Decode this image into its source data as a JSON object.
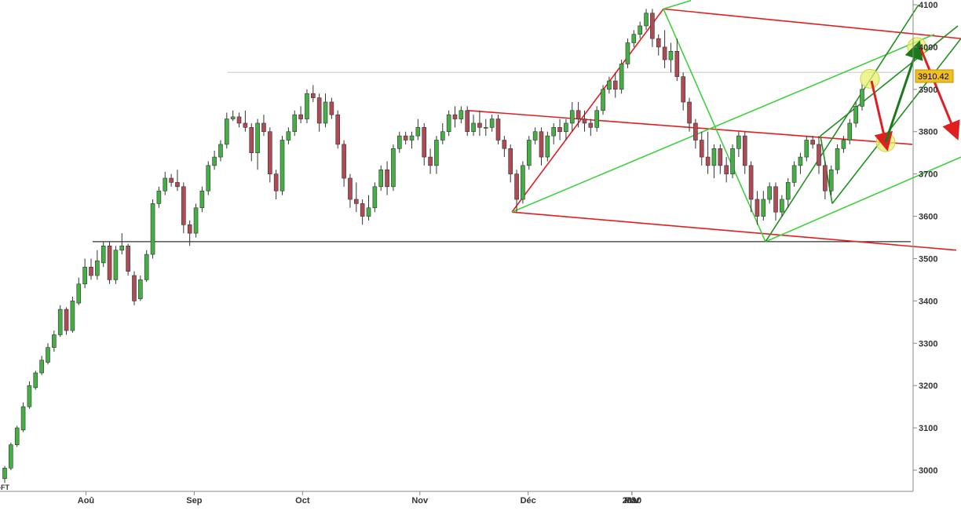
{
  "chart_data": {
    "type": "candlestick",
    "title": "",
    "xlabel": "",
    "ylabel": "",
    "ylim": [
      2950,
      4100
    ],
    "y_ticks": [
      3000,
      3100,
      3200,
      3300,
      3400,
      3500,
      3600,
      3700,
      3800,
      3900,
      4000,
      4100
    ],
    "y_tick_labels": [
      "3000",
      "3100",
      "3200",
      "3300",
      "3400",
      "3500",
      "3600",
      "3700",
      "3800",
      "3900",
      "4000",
      "4100"
    ],
    "x_tick_labels": [
      "Aoû",
      "Sep",
      "Oct",
      "Nov",
      "Déc",
      "2010",
      "Fév",
      "Mar"
    ],
    "last_price_label": "3910.42",
    "corner_label": "-FT",
    "up_color": "#44b044",
    "down_color": "#b04a55",
    "grid": false,
    "candles": [
      [
        2980,
        2970,
        3005,
        3010
      ],
      [
        3005,
        3000,
        3060,
        3065
      ],
      [
        3060,
        3055,
        3100,
        3105
      ],
      [
        3095,
        3090,
        3150,
        3160
      ],
      [
        3150,
        3145,
        3200,
        3210
      ],
      [
        3195,
        3190,
        3230,
        3235
      ],
      [
        3230,
        3225,
        3260,
        3270
      ],
      [
        3255,
        3250,
        3290,
        3300
      ],
      [
        3290,
        3280,
        3320,
        3330
      ],
      [
        3320,
        3315,
        3380,
        3390
      ],
      [
        3380,
        3320,
        3330,
        3385
      ],
      [
        3330,
        3325,
        3400,
        3410
      ],
      [
        3395,
        3390,
        3440,
        3455
      ],
      [
        3440,
        3430,
        3480,
        3500
      ],
      [
        3480,
        3450,
        3460,
        3500
      ],
      [
        3460,
        3450,
        3495,
        3520
      ],
      [
        3490,
        3480,
        3530,
        3540
      ],
      [
        3530,
        3440,
        3450,
        3540
      ],
      [
        3450,
        3440,
        3520,
        3530
      ],
      [
        3520,
        3510,
        3530,
        3560
      ],
      [
        3530,
        3460,
        3470,
        3535
      ],
      [
        3460,
        3390,
        3400,
        3470
      ],
      [
        3405,
        3400,
        3450,
        3460
      ],
      [
        3450,
        3445,
        3510,
        3520
      ],
      [
        3510,
        3500,
        3630,
        3640
      ],
      [
        3630,
        3620,
        3660,
        3670
      ],
      [
        3660,
        3650,
        3690,
        3705
      ],
      [
        3690,
        3670,
        3680,
        3700
      ],
      [
        3680,
        3660,
        3670,
        3710
      ],
      [
        3670,
        3560,
        3580,
        3680
      ],
      [
        3580,
        3530,
        3560,
        3590
      ],
      [
        3560,
        3550,
        3620,
        3630
      ],
      [
        3620,
        3610,
        3660,
        3670
      ],
      [
        3660,
        3650,
        3720,
        3730
      ],
      [
        3720,
        3710,
        3740,
        3755
      ],
      [
        3740,
        3730,
        3770,
        3780
      ],
      [
        3770,
        3760,
        3830,
        3845
      ],
      [
        3830,
        3825,
        3835,
        3850
      ],
      [
        3835,
        3810,
        3820,
        3845
      ],
      [
        3820,
        3800,
        3810,
        3850
      ],
      [
        3810,
        3730,
        3750,
        3820
      ],
      [
        3750,
        3710,
        3820,
        3830
      ],
      [
        3820,
        3790,
        3800,
        3840
      ],
      [
        3800,
        3680,
        3700,
        3810
      ],
      [
        3700,
        3640,
        3660,
        3710
      ],
      [
        3660,
        3650,
        3780,
        3790
      ],
      [
        3780,
        3770,
        3800,
        3810
      ],
      [
        3800,
        3790,
        3840,
        3850
      ],
      [
        3840,
        3820,
        3830,
        3860
      ],
      [
        3830,
        3820,
        3890,
        3900
      ],
      [
        3890,
        3870,
        3880,
        3910
      ],
      [
        3880,
        3800,
        3820,
        3890
      ],
      [
        3820,
        3810,
        3870,
        3890
      ],
      [
        3870,
        3830,
        3840,
        3880
      ],
      [
        3840,
        3760,
        3770,
        3850
      ],
      [
        3770,
        3670,
        3690,
        3780
      ],
      [
        3690,
        3620,
        3640,
        3700
      ],
      [
        3640,
        3610,
        3630,
        3680
      ],
      [
        3630,
        3580,
        3600,
        3640
      ],
      [
        3600,
        3590,
        3620,
        3650
      ],
      [
        3620,
        3610,
        3670,
        3680
      ],
      [
        3670,
        3660,
        3710,
        3720
      ],
      [
        3710,
        3650,
        3670,
        3730
      ],
      [
        3670,
        3660,
        3760,
        3770
      ],
      [
        3760,
        3750,
        3790,
        3800
      ],
      [
        3790,
        3770,
        3780,
        3800
      ],
      [
        3780,
        3760,
        3790,
        3800
      ],
      [
        3790,
        3780,
        3810,
        3830
      ],
      [
        3810,
        3720,
        3740,
        3820
      ],
      [
        3740,
        3700,
        3720,
        3760
      ],
      [
        3720,
        3700,
        3780,
        3790
      ],
      [
        3780,
        3770,
        3800,
        3820
      ],
      [
        3800,
        3790,
        3840,
        3850
      ],
      [
        3840,
        3810,
        3830,
        3860
      ],
      [
        3830,
        3820,
        3850,
        3860
      ],
      [
        3850,
        3790,
        3800,
        3860
      ],
      [
        3800,
        3790,
        3820,
        3840
      ],
      [
        3820,
        3790,
        3810,
        3850
      ],
      [
        3810,
        3790,
        3810,
        3830
      ],
      [
        3810,
        3800,
        3830,
        3840
      ],
      [
        3830,
        3770,
        3780,
        3840
      ],
      [
        3780,
        3740,
        3760,
        3790
      ],
      [
        3760,
        3680,
        3700,
        3770
      ],
      [
        3700,
        3610,
        3640,
        3710
      ],
      [
        3640,
        3630,
        3720,
        3730
      ],
      [
        3720,
        3710,
        3780,
        3790
      ],
      [
        3780,
        3770,
        3800,
        3810
      ],
      [
        3800,
        3720,
        3740,
        3810
      ],
      [
        3740,
        3730,
        3790,
        3800
      ],
      [
        3790,
        3770,
        3810,
        3820
      ],
      [
        3810,
        3780,
        3800,
        3830
      ],
      [
        3800,
        3780,
        3820,
        3830
      ],
      [
        3820,
        3800,
        3850,
        3870
      ],
      [
        3850,
        3810,
        3830,
        3870
      ],
      [
        3830,
        3800,
        3820,
        3850
      ],
      [
        3820,
        3790,
        3810,
        3830
      ],
      [
        3810,
        3800,
        3850,
        3860
      ],
      [
        3850,
        3840,
        3900,
        3910
      ],
      [
        3900,
        3890,
        3920,
        3930
      ],
      [
        3920,
        3880,
        3900,
        3940
      ],
      [
        3900,
        3890,
        3960,
        3970
      ],
      [
        3960,
        3950,
        4010,
        4020
      ],
      [
        4010,
        4000,
        4030,
        4040
      ],
      [
        4030,
        4020,
        4050,
        4060
      ],
      [
        4050,
        4040,
        4080,
        4090
      ],
      [
        4080,
        4000,
        4020,
        4090
      ],
      [
        4020,
        3980,
        4000,
        4030
      ],
      [
        4000,
        3950,
        3970,
        4040
      ],
      [
        3970,
        3940,
        3990,
        4010
      ],
      [
        3990,
        3920,
        3930,
        4020
      ],
      [
        3930,
        3850,
        3870,
        3940
      ],
      [
        3870,
        3800,
        3820,
        3880
      ],
      [
        3820,
        3760,
        3780,
        3830
      ],
      [
        3780,
        3720,
        3740,
        3800
      ],
      [
        3740,
        3700,
        3720,
        3800
      ],
      [
        3720,
        3690,
        3760,
        3770
      ],
      [
        3760,
        3700,
        3720,
        3770
      ],
      [
        3720,
        3680,
        3700,
        3740
      ],
      [
        3700,
        3690,
        3760,
        3770
      ],
      [
        3760,
        3740,
        3790,
        3800
      ],
      [
        3790,
        3700,
        3720,
        3800
      ],
      [
        3720,
        3610,
        3640,
        3730
      ],
      [
        3640,
        3580,
        3600,
        3660
      ],
      [
        3600,
        3590,
        3640,
        3660
      ],
      [
        3640,
        3630,
        3670,
        3680
      ],
      [
        3670,
        3590,
        3610,
        3680
      ],
      [
        3610,
        3600,
        3640,
        3650
      ],
      [
        3640,
        3620,
        3680,
        3690
      ],
      [
        3680,
        3670,
        3720,
        3730
      ],
      [
        3720,
        3700,
        3740,
        3750
      ],
      [
        3740,
        3730,
        3780,
        3790
      ],
      [
        3780,
        3760,
        3770,
        3790
      ],
      [
        3770,
        3700,
        3720,
        3790
      ],
      [
        3720,
        3640,
        3660,
        3730
      ],
      [
        3660,
        3650,
        3710,
        3720
      ],
      [
        3710,
        3700,
        3760,
        3770
      ],
      [
        3760,
        3750,
        3780,
        3790
      ],
      [
        3780,
        3770,
        3820,
        3830
      ],
      [
        3820,
        3810,
        3860,
        3870
      ],
      [
        3860,
        3850,
        3900,
        3915
      ]
    ],
    "overlay_lines": [
      {
        "kind": "horizontal-support",
        "color": "#000000",
        "points": [
          [
            118,
            3540
          ],
          [
            1160,
            3540
          ]
        ]
      },
      {
        "kind": "horizontal-gray",
        "color": "#d8d8d8",
        "points": [
          [
            290,
            3940
          ],
          [
            1160,
            3940
          ]
        ]
      },
      {
        "kind": "red-channel",
        "color": "#e02020",
        "points": [
          [
            596,
            3850
          ],
          [
            1162,
            3770
          ]
        ]
      },
      {
        "kind": "red-channel",
        "color": "#e02020",
        "points": [
          [
            652,
            3610
          ],
          [
            1218,
            3520
          ]
        ]
      },
      {
        "kind": "red-channel",
        "color": "#e02020",
        "points": [
          [
            845,
            4090
          ],
          [
            1224,
            4020
          ]
        ]
      },
      {
        "kind": "red-trend",
        "color": "#e02020",
        "points": [
          [
            652,
            3610
          ],
          [
            845,
            4090
          ]
        ]
      },
      {
        "kind": "green-channel",
        "color": "#40d040",
        "points": [
          [
            652,
            3610
          ],
          [
            1190,
            4030
          ]
        ]
      },
      {
        "kind": "green-channel",
        "color": "#40d040",
        "points": [
          [
            845,
            4090
          ],
          [
            880,
            4110
          ]
        ]
      },
      {
        "kind": "green-channel",
        "color": "#40d040",
        "points": [
          [
            975,
            3540
          ],
          [
            1224,
            3740
          ]
        ]
      },
      {
        "kind": "green-trend",
        "color": "#40d040",
        "points": [
          [
            845,
            4090
          ],
          [
            975,
            3540
          ]
        ]
      },
      {
        "kind": "darkgreen-channel",
        "color": "#209020",
        "points": [
          [
            1060,
            3630
          ],
          [
            1224,
            4020
          ]
        ]
      },
      {
        "kind": "darkgreen-channel",
        "color": "#209020",
        "points": [
          [
            975,
            3540
          ],
          [
            1170,
            4100
          ]
        ]
      },
      {
        "kind": "darkgreen-channel",
        "color": "#209020",
        "points": [
          [
            1045,
            3790
          ],
          [
            1220,
            4050
          ]
        ]
      },
      {
        "kind": "darkgreen-trend",
        "color": "#209020",
        "points": [
          [
            1045,
            3790
          ],
          [
            1060,
            3630
          ]
        ]
      }
    ],
    "arrows": [
      {
        "color": "#e02020",
        "from": [
          1110,
          3920
        ],
        "to": [
          1128,
          3775
        ]
      },
      {
        "color": "#1a7a1a",
        "from": [
          1128,
          3775
        ],
        "to": [
          1168,
          3995
        ]
      },
      {
        "color": "#e02020",
        "from": [
          1172,
          4000
        ],
        "to": [
          1216,
          3800
        ]
      }
    ],
    "highlights": [
      {
        "at": [
          1108,
          3925
        ]
      },
      {
        "at": [
          1168,
          4000
        ]
      },
      {
        "at": [
          1128,
          3775
        ]
      }
    ]
  }
}
